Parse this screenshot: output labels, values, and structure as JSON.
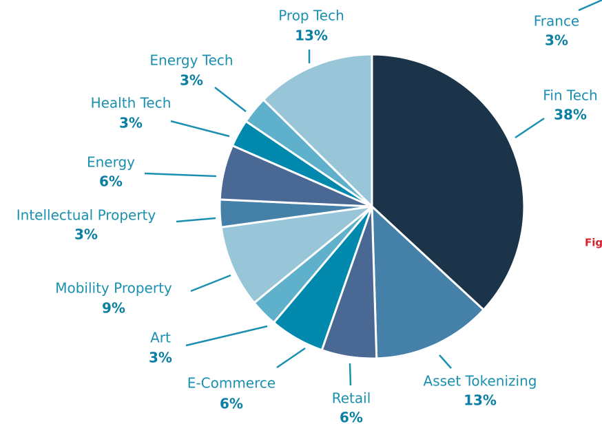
{
  "chart_data": {
    "type": "pie",
    "categories": [
      "Fin Tech",
      "Asset Tokenizing",
      "Retail",
      "E-Commerce",
      "Art",
      "Mobility Property",
      "Intellectual Property",
      "Energy",
      "Health Tech",
      "Energy Tech",
      "Prop Tech"
    ],
    "values": [
      38,
      13,
      6,
      6,
      3,
      9,
      3,
      6,
      3,
      3,
      13
    ],
    "value_labels": [
      "38%",
      "13%",
      "6%",
      "6%",
      "3%",
      "9%",
      "3%",
      "6%",
      "3%",
      "3%",
      "13%"
    ],
    "colors": [
      "#1b3449",
      "#4480a8",
      "#4a6894",
      "#0089ad",
      "#5fb0cb",
      "#98c6d8",
      "#4480a8",
      "#4a6894",
      "#0089ad",
      "#5fb0cb",
      "#98c6d8"
    ],
    "annotations": [
      "France",
      "3%",
      "Fig"
    ]
  }
}
